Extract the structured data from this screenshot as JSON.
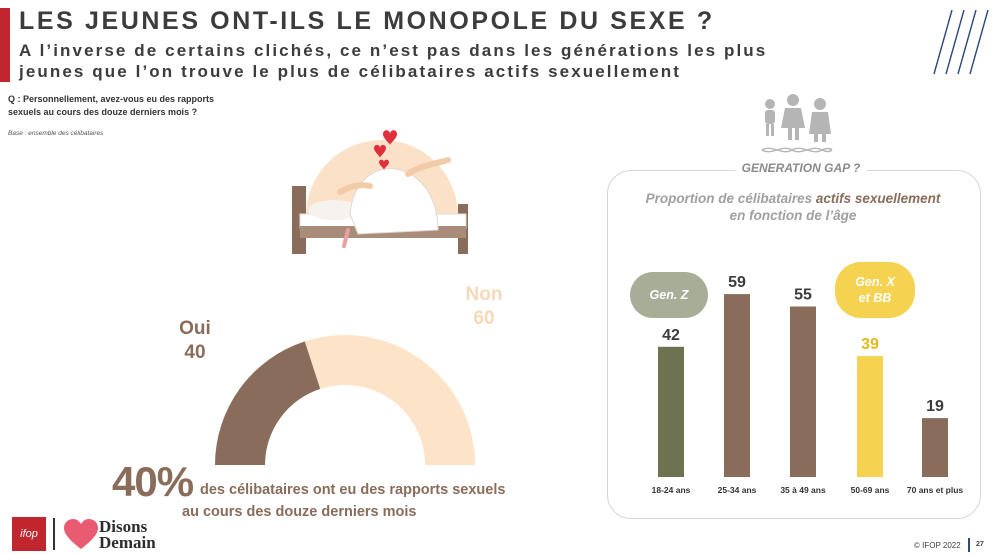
{
  "header": {
    "title": "LES JEUNES ONT-ILS LE MONOPOLE DU SEXE ?",
    "subtitle_line1": "A l’inverse de certains clichés, ce n’est pas dans les générations les plus",
    "subtitle_line2": "jeunes que l’on trouve le plus de célibataires actifs sexuellement"
  },
  "question": {
    "line1": "Q : Personnellement, avez-vous eu des rapports",
    "line2": "sexuels au cours des douze derniers mois ?",
    "base": "Base : ensemble des célibataires"
  },
  "gauge": {
    "oui_label": "Oui",
    "oui_value": "40",
    "non_label": "Non",
    "non_value": "60",
    "big_percent": "40%",
    "statement_line1": "des célibataires ont eu des rapports sexuels",
    "statement_line2": "au cours des douze derniers mois"
  },
  "panel": {
    "badge": "GENERATION GAP ?",
    "title_pre": "Proportion de célibataires ",
    "title_highlight": "actifs sexuellement",
    "title_line2": "en fonction de l’âge",
    "pill_z": "Gen. Z",
    "pill_x_line1": "Gen. X",
    "pill_x_line2": "et BB"
  },
  "colors": {
    "brand_red": "#c0262d",
    "brown": "#8a6c5b",
    "peach": "#f6d9b8",
    "olive": "#6f7250",
    "yellow": "#f6d251",
    "bar_brown": "#8a6c5b"
  },
  "chart_data": [
    {
      "type": "pie",
      "subtype": "half-donut",
      "categories": [
        "Oui",
        "Non"
      ],
      "values": [
        40,
        60
      ],
      "colors": [
        "#8a6c5b",
        "#fde4c8"
      ]
    },
    {
      "type": "bar",
      "title": "Proportion de célibataires actifs sexuellement en fonction de l’âge",
      "categories": [
        "18-24 ans",
        "25-34 ans",
        "35 à 49 ans",
        "50-69 ans",
        "70 ans et plus"
      ],
      "values": [
        42,
        59,
        55,
        39,
        19
      ],
      "colors": [
        "#6f7250",
        "#8a6c5b",
        "#8a6c5b",
        "#f6d251",
        "#8a6c5b"
      ],
      "label_colors": [
        "#3c3c3c",
        "#3c3c3c",
        "#3c3c3c",
        "#e6b91a",
        "#3c3c3c"
      ],
      "ylim": [
        0,
        100
      ],
      "grid": false
    }
  ],
  "footer": {
    "copyright": "© IFOP 2022",
    "page_number": "27",
    "ifop_logo_text": "ifop",
    "partner_line1": "Disons",
    "partner_line2": "Demain"
  }
}
